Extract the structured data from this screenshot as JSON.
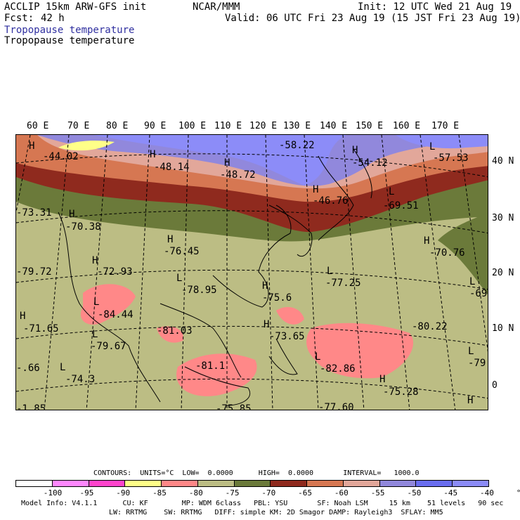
{
  "header": {
    "model": "ACCLIP 15km ARW-GFS init",
    "org": "NCAR/MMM",
    "init": "Init: 12 UTC Wed 21 Aug 19",
    "fcst_label": "Fcst:",
    "fcst_value": "42 h",
    "valid": "Valid: 06 UTC Fri 23 Aug 19 (15 JST Fri 23 Aug 19)",
    "field_title_1": "Tropopause temperature",
    "field_title_2": "Tropopause temperature"
  },
  "map": {
    "lon_labels": [
      "60 E",
      "70 E",
      "80 E",
      "90 E",
      "100 E",
      "110 E",
      "120 E",
      "130 E",
      "140 E",
      "150 E",
      "160 E",
      "170 E"
    ],
    "lat_labels": [
      "40 N",
      "30 N",
      "20 N",
      "10 N",
      "0"
    ],
    "centers": [
      {
        "type": "H",
        "value": "-44.02"
      },
      {
        "type": "H",
        "value": "-48.14"
      },
      {
        "type": "H",
        "value": "-48.72"
      },
      {
        "type": "",
        "value": "-58.22"
      },
      {
        "type": "H",
        "value": "-54.12"
      },
      {
        "type": "L",
        "value": "-57.53"
      },
      {
        "type": "H",
        "value": "-46.76"
      },
      {
        "type": "L",
        "value": "-69.51"
      },
      {
        "type": "",
        "value": "-73.31"
      },
      {
        "type": "H",
        "value": "-70.38"
      },
      {
        "type": "H",
        "value": "-76.45"
      },
      {
        "type": "H",
        "value": "-70.76"
      },
      {
        "type": "",
        "value": "-79.72"
      },
      {
        "type": "H",
        "value": "-72.93"
      },
      {
        "type": "L",
        "value": "-78.95"
      },
      {
        "type": "L",
        "value": "-77.25"
      },
      {
        "type": "L",
        "value": "-69."
      },
      {
        "type": "L",
        "value": "-84.44"
      },
      {
        "type": "H",
        "value": "-75.6"
      },
      {
        "type": "",
        "value": "-80.22"
      },
      {
        "type": "H",
        "value": "-71.65"
      },
      {
        "type": "",
        "value": "-81.03"
      },
      {
        "type": "H",
        "value": "-73.65"
      },
      {
        "type": "L",
        "value": "-79.67"
      },
      {
        "type": "L",
        "value": "-79."
      },
      {
        "type": "",
        "value": "-81.1"
      },
      {
        "type": "L",
        "value": "-82.86"
      },
      {
        "type": "",
        "value": "-.66"
      },
      {
        "type": "L",
        "value": "-74.3"
      },
      {
        "type": "H",
        "value": "-75.28"
      },
      {
        "type": "",
        "value": "-75.85"
      },
      {
        "type": "",
        "value": "-77.60"
      },
      {
        "type": "",
        "value": "-1.85"
      },
      {
        "type": "H",
        "value": ""
      }
    ]
  },
  "footer": {
    "contours": "CONTOURS:  UNITS=°C  LOW=  0.0000      HIGH=  0.0000       INTERVAL=   1000.0",
    "colorbar_labels": [
      "-100",
      "-95",
      "-90",
      "-85",
      "-80",
      "-75",
      "-70",
      "-65",
      "-60",
      "-55",
      "-50",
      "-45",
      "-40",
      "°C"
    ],
    "colorbar_colors": [
      "#ffffff",
      "#ff88ff",
      "#ff44cc",
      "#ffff88",
      "#ff8888",
      "#bcbd84",
      "#6b7a3a",
      "#8f2a1e",
      "#d67752",
      "#e2a79a",
      "#9188dc",
      "#6a6ef0",
      "#8c8cf8"
    ],
    "model_info_1": "Model Info: V4.1.1      CU: KF        MP: WDM 6class   PBL: YSU       SF: Noah LSM     15 km    51 levels   90 sec",
    "model_info_2": "LW: RRTMG    SW: RRTMG   DIFF: simple KM: 2D Smagor DAMP: Rayleigh3  SFLAY: MM5"
  }
}
